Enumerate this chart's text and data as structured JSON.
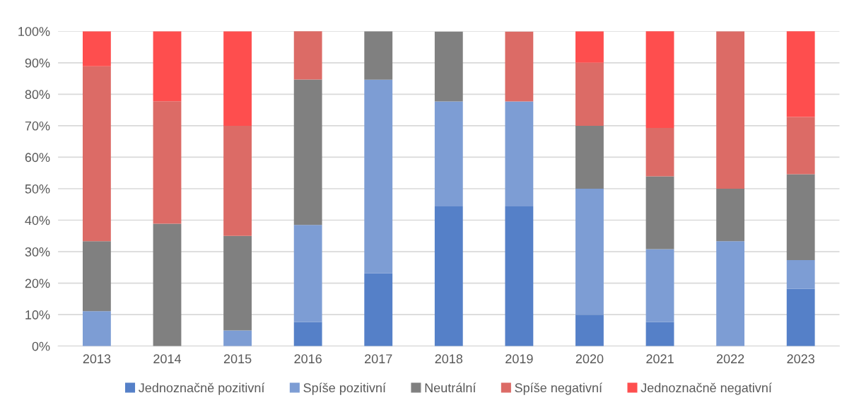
{
  "chart_data": {
    "type": "bar",
    "stacked": true,
    "categories": [
      "2013",
      "2014",
      "2015",
      "2016",
      "2017",
      "2018",
      "2019",
      "2020",
      "2021",
      "2022",
      "2023"
    ],
    "series": [
      {
        "name": "Jednoznačně pozitivní",
        "color": "#5580c8",
        "values": [
          0,
          0,
          0,
          7.7,
          23.1,
          44.4,
          44.4,
          10,
          7.7,
          0,
          18.2
        ]
      },
      {
        "name": "Spíše pozitivní",
        "color": "#7d9dd4",
        "values": [
          11.1,
          0,
          5,
          30.8,
          61.5,
          33.3,
          33.3,
          40,
          23.1,
          33.3,
          9.1
        ]
      },
      {
        "name": "Neutrální",
        "color": "#808080",
        "values": [
          22.2,
          38.9,
          30,
          46.2,
          15.4,
          22.2,
          0,
          20,
          23.1,
          16.7,
          27.3
        ]
      },
      {
        "name": "Spíše negativní",
        "color": "#dc6b66",
        "values": [
          55.6,
          38.9,
          35,
          15.4,
          0,
          0,
          22.2,
          20,
          15.4,
          50,
          18.2
        ]
      },
      {
        "name": "Jednoznačně negativní",
        "color": "#fe4e4e",
        "values": [
          11.1,
          22.2,
          30,
          0,
          0,
          0,
          0,
          10,
          30.8,
          0,
          27.3
        ]
      }
    ],
    "ylim": [
      0,
      100
    ],
    "yticks": [
      {
        "value": 0,
        "label": "0%"
      },
      {
        "value": 10,
        "label": "10%"
      },
      {
        "value": 20,
        "label": "20%"
      },
      {
        "value": 30,
        "label": "30%"
      },
      {
        "value": 40,
        "label": "40%"
      },
      {
        "value": 50,
        "label": "50%"
      },
      {
        "value": 60,
        "label": "60%"
      },
      {
        "value": 70,
        "label": "70%"
      },
      {
        "value": 80,
        "label": "80%"
      },
      {
        "value": 90,
        "label": "90%"
      },
      {
        "value": 100,
        "label": "100%"
      }
    ],
    "grid": "y",
    "legend": "bottom"
  }
}
